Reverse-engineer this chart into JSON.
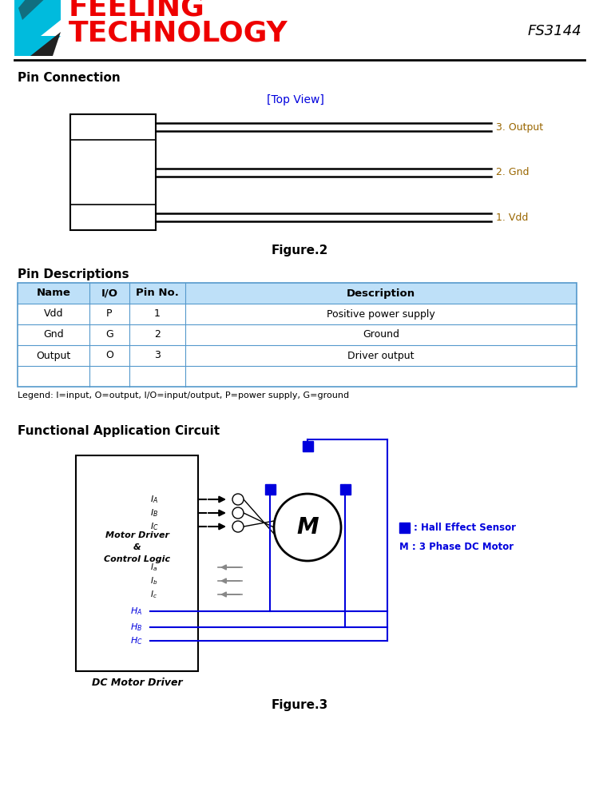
{
  "title_line1": "FEELING",
  "title_line2": "TECHNOLOGY",
  "title_part": "FS3144",
  "section1_title": "Pin Connection",
  "top_view_label": "[Top View]",
  "pin_labels": [
    "3. Output",
    "2. Gnd",
    "1. Vdd"
  ],
  "figure2_label": "Figure.2",
  "section2_title": "Pin Descriptions",
  "table_headers": [
    "Name",
    "I/O",
    "Pin No.",
    "Description"
  ],
  "table_rows": [
    [
      "Vdd",
      "P",
      "1",
      "Positive power supply"
    ],
    [
      "Gnd",
      "G",
      "2",
      "Ground"
    ],
    [
      "Output",
      "O",
      "3",
      "Driver output"
    ]
  ],
  "legend_text": "Legend: I=input, O=output, I/O=input/output, P=power supply, G=ground",
  "section3_title": "Functional Application Circuit",
  "figure3_label": "Figure.3",
  "dc_motor_label": "DC Motor Driver",
  "motor_driver_label": "Motor Driver\n&\nControl Logic",
  "hall_legend": ": Hall Effect Sensor",
  "motor_legend": "M : 3 Phase DC Motor",
  "color_red": "#EE0000",
  "color_blue": "#0000DD",
  "color_cyan": "#00BBDD",
  "color_header_bg": "#BEE0F8",
  "color_orange_brown": "#996600",
  "bg_color": "#FFFFFF",
  "color_gray": "#888888",
  "color_dark": "#111111"
}
